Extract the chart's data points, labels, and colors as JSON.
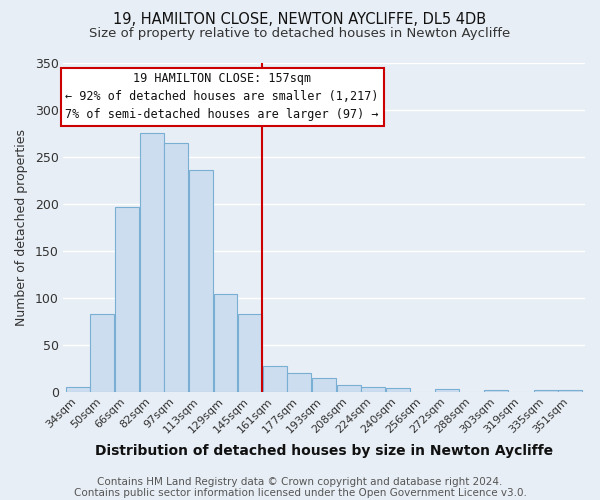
{
  "title": "19, HAMILTON CLOSE, NEWTON AYCLIFFE, DL5 4DB",
  "subtitle": "Size of property relative to detached houses in Newton Aycliffe",
  "xlabel": "Distribution of detached houses by size in Newton Aycliffe",
  "ylabel": "Number of detached properties",
  "bin_labels": [
    "34sqm",
    "50sqm",
    "66sqm",
    "82sqm",
    "97sqm",
    "113sqm",
    "129sqm",
    "145sqm",
    "161sqm",
    "177sqm",
    "193sqm",
    "208sqm",
    "224sqm",
    "240sqm",
    "256sqm",
    "272sqm",
    "288sqm",
    "303sqm",
    "319sqm",
    "335sqm",
    "351sqm"
  ],
  "bar_heights": [
    5,
    83,
    196,
    275,
    265,
    236,
    104,
    83,
    28,
    20,
    15,
    7,
    5,
    4,
    0,
    3,
    0,
    2,
    0,
    2,
    2
  ],
  "bar_color": "#ccddf0",
  "bar_edge_color": "#7aafd4",
  "vline_color": "#cc0000",
  "annotation_title": "19 HAMILTON CLOSE: 157sqm",
  "annotation_line1": "← 92% of detached houses are smaller (1,217)",
  "annotation_line2": "7% of semi-detached houses are larger (97) →",
  "annotation_box_color": "#ffffff",
  "annotation_box_edge_color": "#cc0000",
  "ylim": [
    0,
    350
  ],
  "yticks": [
    0,
    50,
    100,
    150,
    200,
    250,
    300,
    350
  ],
  "footer1": "Contains HM Land Registry data © Crown copyright and database right 2024.",
  "footer2": "Contains public sector information licensed under the Open Government Licence v3.0.",
  "background_color": "#e8eef5",
  "grid_color": "#ffffff",
  "title_fontsize": 10.5,
  "subtitle_fontsize": 9.5,
  "xlabel_fontsize": 10,
  "ylabel_fontsize": 9,
  "tick_fontsize": 8,
  "footer_fontsize": 7.5,
  "annotation_fontsize": 8.5
}
